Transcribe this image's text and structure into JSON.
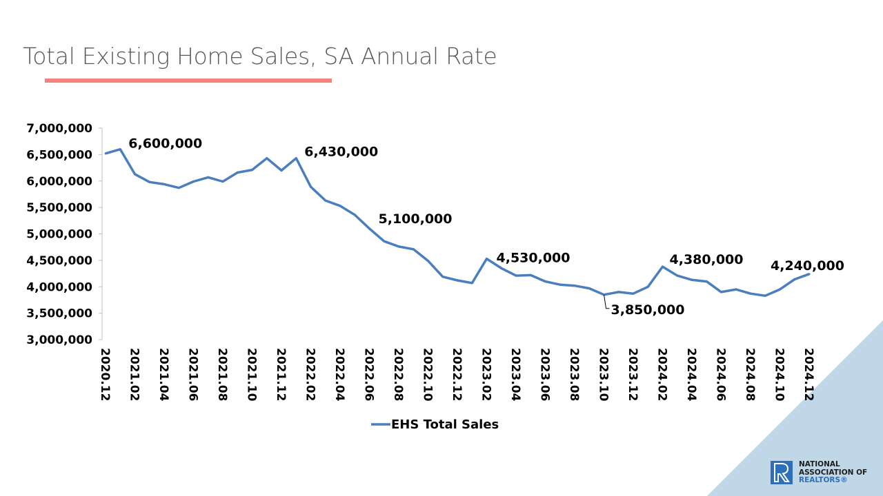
{
  "title": "Total Existing Home Sales, SA Annual Rate",
  "colors": {
    "line": "#4a7ebf",
    "underline": "#f4827c",
    "corner": "#bfd7e6",
    "logo": "#2f6fba"
  },
  "logo": {
    "line1": "NATIONAL",
    "line2": "ASSOCIATION OF",
    "line3": "REALTORS®",
    "icon": "realtor-r-logo-icon"
  },
  "chart_data": {
    "type": "line",
    "title": "",
    "xlabel": "",
    "ylabel": "",
    "ylim": [
      3000000,
      7000000
    ],
    "y_ticks": [
      "3,000,000",
      "3,500,000",
      "4,000,000",
      "4,500,000",
      "5,000,000",
      "5,500,000",
      "6,000,000",
      "6,500,000",
      "7,000,000"
    ],
    "grid": false,
    "legend_position": "bottom",
    "x": [
      "2020.12",
      "2021.01",
      "2021.02",
      "2021.03",
      "2021.04",
      "2021.05",
      "2021.06",
      "2021.07",
      "2021.08",
      "2021.09",
      "2021.10",
      "2021.11",
      "2021.12",
      "2022.01",
      "2022.02",
      "2022.03",
      "2022.04",
      "2022.05",
      "2022.06",
      "2022.07",
      "2022.08",
      "2022.09",
      "2022.10",
      "2022.11",
      "2022.12",
      "2023.01",
      "2023.02",
      "2023.03",
      "2023.04",
      "2023.05",
      "2023.06",
      "2023.07",
      "2023.08",
      "2023.09",
      "2023.10",
      "2023.11",
      "2023.12",
      "2024.01",
      "2024.02",
      "2024.03",
      "2024.04",
      "2024.05",
      "2024.06",
      "2024.07",
      "2024.08",
      "2024.09",
      "2024.10",
      "2024.11",
      "2024.12"
    ],
    "x_tick_labels": [
      "2020.12",
      "2021.02",
      "2021.04",
      "2021.06",
      "2021.08",
      "2021.10",
      "2021.12",
      "2022.02",
      "2022.04",
      "2022.06",
      "2022.08",
      "2022.10",
      "2022.12",
      "2023.02",
      "2023.04",
      "2023.06",
      "2023.08",
      "2023.10",
      "2023.12",
      "2024.02",
      "2024.04",
      "2024.06",
      "2024.08",
      "2024.10",
      "2024.12"
    ],
    "series": [
      {
        "name": "EHS Total Sales",
        "values": [
          6520000,
          6600000,
          6130000,
          5980000,
          5940000,
          5870000,
          5990000,
          6070000,
          5990000,
          6160000,
          6210000,
          6430000,
          6200000,
          6430000,
          5890000,
          5630000,
          5530000,
          5360000,
          5100000,
          4860000,
          4760000,
          4710000,
          4490000,
          4190000,
          4120000,
          4070000,
          4530000,
          4350000,
          4210000,
          4220000,
          4100000,
          4040000,
          4020000,
          3970000,
          3850000,
          3900000,
          3870000,
          4000000,
          4380000,
          4210000,
          4130000,
          4100000,
          3900000,
          3950000,
          3870000,
          3830000,
          3950000,
          4140000,
          4240000
        ]
      }
    ],
    "annotations": [
      {
        "x": "2021.01",
        "text": "6,600,000"
      },
      {
        "x": "2022.01",
        "text": "6,430,000"
      },
      {
        "x": "2022.06",
        "text": "5,100,000"
      },
      {
        "x": "2023.02",
        "text": "4,530,000"
      },
      {
        "x": "2023.10",
        "text": "3,850,000"
      },
      {
        "x": "2024.02",
        "text": "4,380,000"
      },
      {
        "x": "2024.12",
        "text": "4,240,000"
      }
    ]
  }
}
